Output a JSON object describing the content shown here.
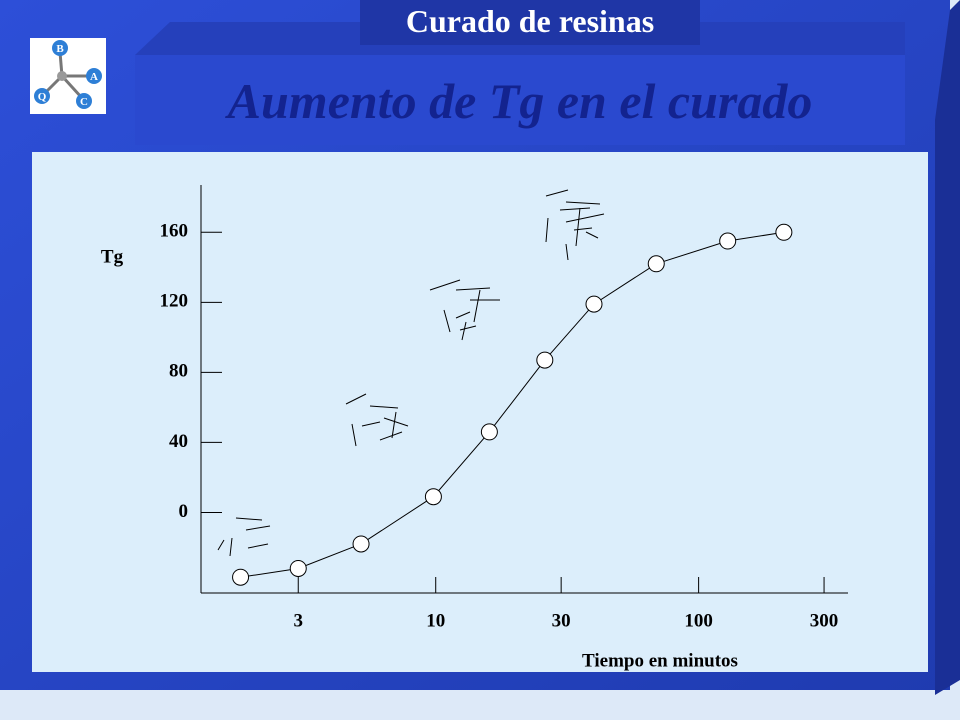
{
  "header": {
    "banner": "Curado de resinas",
    "title": "Aumento de Tg  en el curado",
    "logo_letters": [
      "B",
      "A",
      "C",
      "Q"
    ]
  },
  "chart_data": {
    "type": "line",
    "y_label": "Tg",
    "x_label": "Tiempo  en minutos",
    "xscale": "log",
    "xlim": [
      1.28,
      370
    ],
    "ylim": [
      -46,
      187
    ],
    "xticks": [
      3,
      10,
      30,
      100,
      300
    ],
    "yticks": [
      0,
      40,
      80,
      120,
      160
    ],
    "x": [
      1.81,
      3.0,
      5.2,
      9.8,
      16,
      26,
      40,
      69,
      129,
      211
    ],
    "series": [
      {
        "color": "#000000",
        "values": [
          -37,
          -32,
          -18,
          9,
          46,
          87,
          119,
          142,
          155,
          160
        ]
      }
    ]
  }
}
